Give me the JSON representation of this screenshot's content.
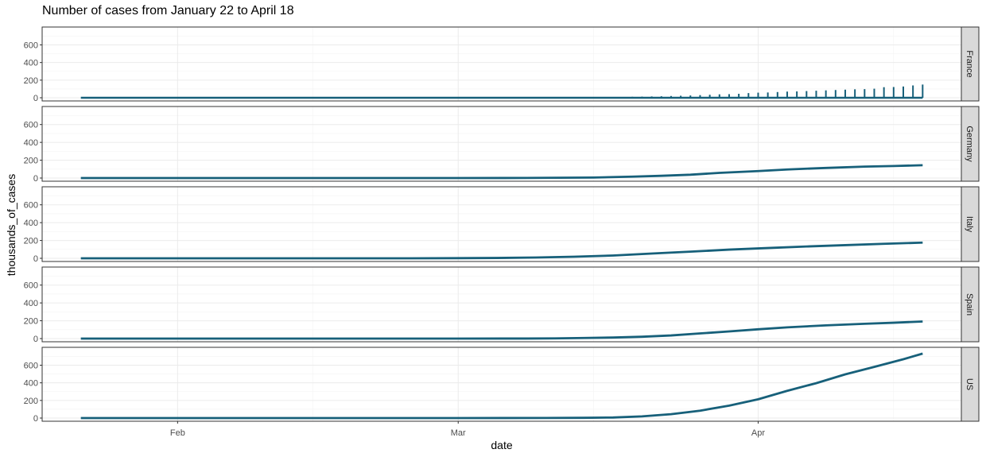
{
  "chart_data": {
    "type": "line",
    "title": "Number of cases from January 22 to April 18",
    "xlabel": "date",
    "ylabel": "thousands_of_cases",
    "x_ticks": [
      "Feb",
      "Mar",
      "Apr"
    ],
    "x_tick_dates": [
      "2020-02-01",
      "2020-03-01",
      "2020-04-01"
    ],
    "xlim": [
      "2020-01-18",
      "2020-04-22"
    ],
    "x_start": "2020-01-22",
    "x_end": "2020-04-18",
    "ylim": [
      0,
      740
    ],
    "y_ticks": [
      0,
      200,
      400,
      600
    ],
    "grid": true,
    "line_color": "#17607a",
    "panels": [
      {
        "name": "France",
        "style": "spikes",
        "data": [
          [
            "2020-03-07",
            0.8
          ],
          [
            "2020-03-08",
            1.0
          ],
          [
            "2020-03-09",
            1.2
          ],
          [
            "2020-03-10",
            1.8
          ],
          [
            "2020-03-11",
            2.3
          ],
          [
            "2020-03-12",
            2.9
          ],
          [
            "2020-03-13",
            3.7
          ],
          [
            "2020-03-14",
            4.5
          ],
          [
            "2020-03-15",
            5.4
          ],
          [
            "2020-03-16",
            6.6
          ],
          [
            "2020-03-17",
            7.7
          ],
          [
            "2020-03-18",
            9.1
          ],
          [
            "2020-03-19",
            10.9
          ],
          [
            "2020-03-20",
            12.6
          ],
          [
            "2020-03-21",
            14.3
          ],
          [
            "2020-03-22",
            16.2
          ],
          [
            "2020-03-23",
            19.9
          ],
          [
            "2020-03-24",
            22.3
          ],
          [
            "2020-03-25",
            25.2
          ],
          [
            "2020-03-26",
            29.2
          ],
          [
            "2020-03-27",
            33.0
          ],
          [
            "2020-03-28",
            38.1
          ],
          [
            "2020-03-29",
            40.2
          ],
          [
            "2020-03-30",
            44.5
          ],
          [
            "2020-03-31",
            52.1
          ],
          [
            "2020-04-01",
            56.9
          ],
          [
            "2020-04-02",
            59.1
          ],
          [
            "2020-04-03",
            64.3
          ],
          [
            "2020-04-04",
            68.6
          ],
          [
            "2020-04-05",
            70.5
          ],
          [
            "2020-04-06",
            74.4
          ],
          [
            "2020-04-07",
            78.2
          ],
          [
            "2020-04-08",
            82.0
          ],
          [
            "2020-04-09",
            86.3
          ],
          [
            "2020-04-10",
            90.7
          ],
          [
            "2020-04-11",
            93.8
          ],
          [
            "2020-04-12",
            95.4
          ],
          [
            "2020-04-13",
            98.0
          ],
          [
            "2020-04-14",
            103.3
          ],
          [
            "2020-04-15",
            106.2
          ],
          [
            "2020-04-16",
            108.8
          ],
          [
            "2020-04-17",
            109.3
          ],
          [
            "2020-04-18",
            111.8
          ]
        ],
        "spike_top": [
          [
            "2020-03-07",
            1
          ],
          [
            "2020-03-09",
            2
          ],
          [
            "2020-03-11",
            3
          ],
          [
            "2020-03-13",
            4
          ],
          [
            "2020-03-15",
            5
          ],
          [
            "2020-03-17",
            8
          ],
          [
            "2020-03-19",
            11
          ],
          [
            "2020-03-20",
            13
          ],
          [
            "2020-03-21",
            15
          ],
          [
            "2020-03-22",
            17
          ],
          [
            "2020-03-23",
            20
          ],
          [
            "2020-03-24",
            23
          ],
          [
            "2020-03-25",
            26
          ],
          [
            "2020-03-26",
            30
          ],
          [
            "2020-03-27",
            34
          ],
          [
            "2020-03-28",
            39
          ],
          [
            "2020-03-29",
            41
          ],
          [
            "2020-03-30",
            45
          ],
          [
            "2020-03-31",
            53
          ],
          [
            "2020-04-01",
            58
          ],
          [
            "2020-04-02",
            60
          ],
          [
            "2020-04-03",
            65
          ],
          [
            "2020-04-04",
            70
          ],
          [
            "2020-04-05",
            72
          ],
          [
            "2020-04-06",
            76
          ],
          [
            "2020-04-07",
            80
          ],
          [
            "2020-04-08",
            84
          ],
          [
            "2020-04-09",
            88
          ],
          [
            "2020-04-10",
            92
          ],
          [
            "2020-04-11",
            96
          ],
          [
            "2020-04-12",
            98
          ],
          [
            "2020-04-13",
            103
          ],
          [
            "2020-04-14",
            120
          ],
          [
            "2020-04-15",
            122
          ],
          [
            "2020-04-16",
            128
          ],
          [
            "2020-04-17",
            140
          ],
          [
            "2020-04-18",
            150
          ]
        ]
      },
      {
        "name": "Germany",
        "style": "line",
        "data": [
          [
            "2020-01-22",
            0
          ],
          [
            "2020-03-01",
            0.1
          ],
          [
            "2020-03-08",
            1.0
          ],
          [
            "2020-03-15",
            5.8
          ],
          [
            "2020-03-19",
            15.3
          ],
          [
            "2020-03-22",
            24.9
          ],
          [
            "2020-03-25",
            37.3
          ],
          [
            "2020-03-28",
            57.7
          ],
          [
            "2020-04-01",
            77.9
          ],
          [
            "2020-04-04",
            96.1
          ],
          [
            "2020-04-08",
            113.3
          ],
          [
            "2020-04-12",
            127.9
          ],
          [
            "2020-04-15",
            134.8
          ],
          [
            "2020-04-18",
            143.7
          ]
        ]
      },
      {
        "name": "Italy",
        "style": "line",
        "data": [
          [
            "2020-01-22",
            0
          ],
          [
            "2020-02-20",
            0
          ],
          [
            "2020-02-25",
            0.3
          ],
          [
            "2020-03-01",
            1.7
          ],
          [
            "2020-03-05",
            3.9
          ],
          [
            "2020-03-09",
            9.2
          ],
          [
            "2020-03-13",
            17.7
          ],
          [
            "2020-03-17",
            31.5
          ],
          [
            "2020-03-21",
            53.6
          ],
          [
            "2020-03-25",
            74.4
          ],
          [
            "2020-03-29",
            97.7
          ],
          [
            "2020-04-02",
            115.2
          ],
          [
            "2020-04-06",
            132.5
          ],
          [
            "2020-04-10",
            147.6
          ],
          [
            "2020-04-14",
            162.5
          ],
          [
            "2020-04-18",
            175.9
          ]
        ]
      },
      {
        "name": "Spain",
        "style": "line",
        "data": [
          [
            "2020-01-22",
            0
          ],
          [
            "2020-03-01",
            0.1
          ],
          [
            "2020-03-08",
            0.7
          ],
          [
            "2020-03-11",
            2.3
          ],
          [
            "2020-03-14",
            6.4
          ],
          [
            "2020-03-17",
            11.8
          ],
          [
            "2020-03-20",
            20.4
          ],
          [
            "2020-03-23",
            35.1
          ],
          [
            "2020-03-26",
            57.8
          ],
          [
            "2020-03-29",
            80.1
          ],
          [
            "2020-04-01",
            104.1
          ],
          [
            "2020-04-04",
            126.2
          ],
          [
            "2020-04-08",
            148.2
          ],
          [
            "2020-04-12",
            166.0
          ],
          [
            "2020-04-15",
            177.6
          ],
          [
            "2020-04-18",
            191.7
          ]
        ]
      },
      {
        "name": "US",
        "style": "line",
        "data": [
          [
            "2020-01-22",
            0
          ],
          [
            "2020-03-01",
            0.1
          ],
          [
            "2020-03-10",
            1.0
          ],
          [
            "2020-03-14",
            2.7
          ],
          [
            "2020-03-17",
            6.4
          ],
          [
            "2020-03-20",
            19.1
          ],
          [
            "2020-03-23",
            43.8
          ],
          [
            "2020-03-26",
            83.8
          ],
          [
            "2020-03-29",
            140.9
          ],
          [
            "2020-04-01",
            213.2
          ],
          [
            "2020-04-04",
            308.8
          ],
          [
            "2020-04-07",
            396.2
          ],
          [
            "2020-04-10",
            496.5
          ],
          [
            "2020-04-13",
            580.6
          ],
          [
            "2020-04-16",
            667.8
          ],
          [
            "2020-04-18",
            732.2
          ]
        ]
      }
    ]
  }
}
